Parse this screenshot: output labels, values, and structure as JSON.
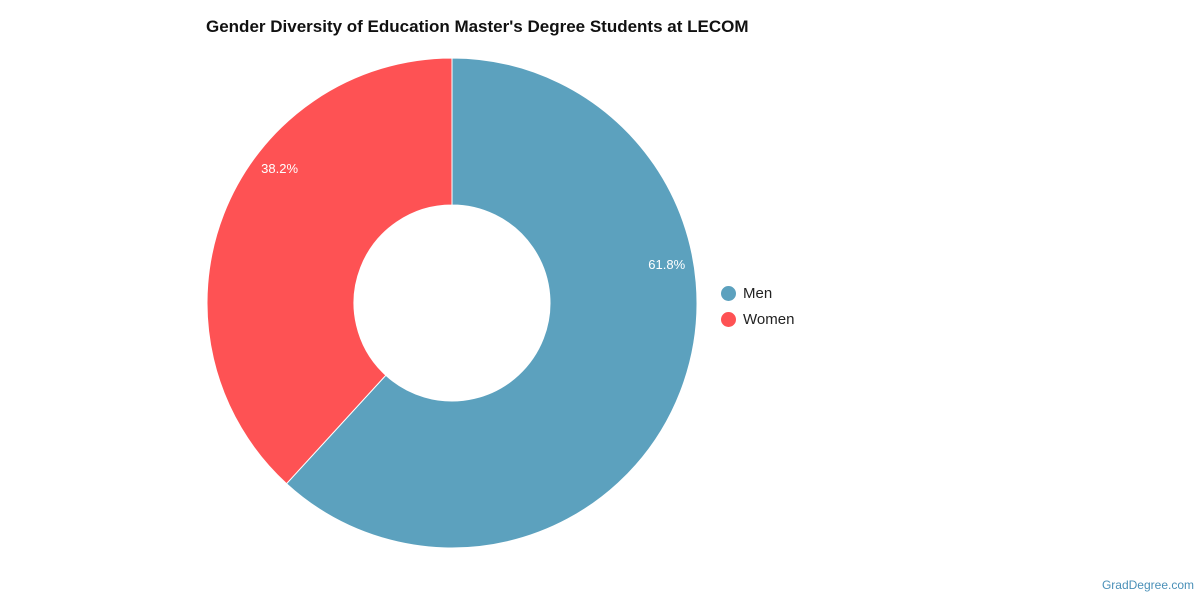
{
  "chart_data": {
    "type": "pie",
    "title": "Gender Diversity of Education Master's Degree Students at LECOM",
    "legend_position": "right",
    "categories": [
      "Men",
      "Women"
    ],
    "values": [
      61.8,
      38.2
    ],
    "labels": [
      "61.8%",
      "38.2%"
    ],
    "colors": [
      "#5ca1be",
      "#fe5254"
    ]
  },
  "watermark": "GradDegree.com"
}
